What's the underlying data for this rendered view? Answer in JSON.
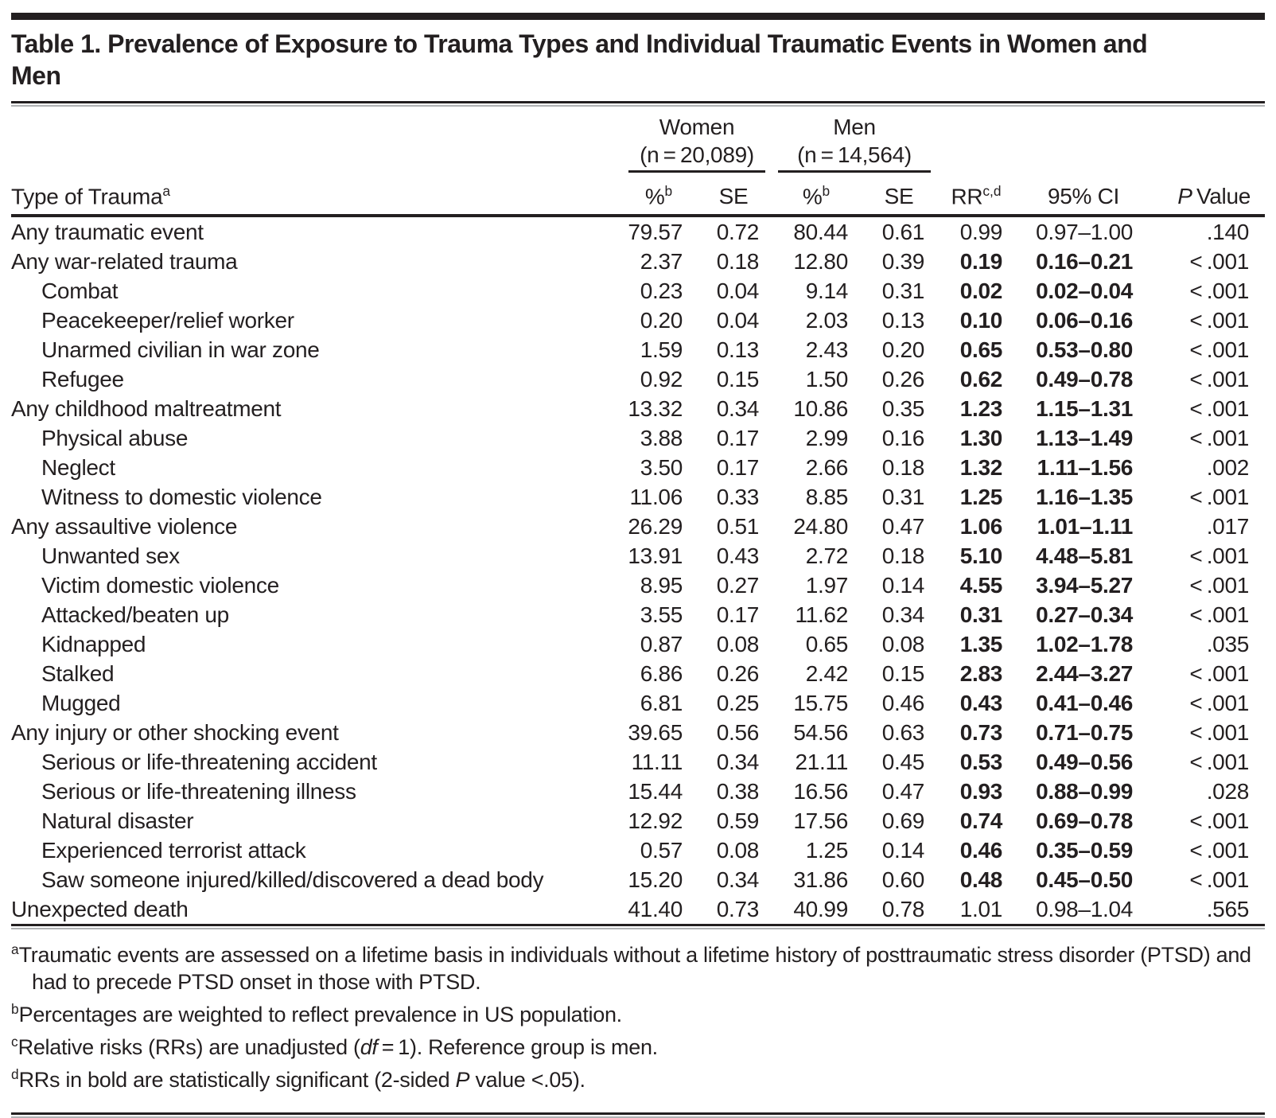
{
  "title_lines": [
    "Table 1. Prevalence of Exposure to Trauma Types and Individual Traumatic Events in Women and",
    "Men"
  ],
  "header": {
    "col_type": "Type of Trauma",
    "col_type_sup": "a",
    "groups": {
      "women": {
        "label": "Women",
        "n": "(n = 20,089)"
      },
      "men": {
        "label": "Men",
        "n": "(n = 14,564)"
      }
    },
    "pct_label": "%",
    "pct_sup": "b",
    "se_label": "SE",
    "rr_label": "RR",
    "rr_sup": "c,d",
    "ci_label": "95% CI",
    "p_label_italic": "P",
    "p_label_rest": " Value"
  },
  "rows": [
    {
      "label": "Any traumatic event",
      "indent": 0,
      "w_pct": "79.57",
      "w_se": "0.72",
      "m_pct": "80.44",
      "m_se": "0.61",
      "rr": "0.99",
      "ci": "0.97–1.00",
      "p": ".140",
      "sig": false
    },
    {
      "label": "Any war-related trauma",
      "indent": 0,
      "w_pct": "2.37",
      "w_se": "0.18",
      "m_pct": "12.80",
      "m_se": "0.39",
      "rr": "0.19",
      "ci": "0.16–0.21",
      "p": "< .001",
      "sig": true
    },
    {
      "label": "Combat",
      "indent": 1,
      "w_pct": "0.23",
      "w_se": "0.04",
      "m_pct": "9.14",
      "m_se": "0.31",
      "rr": "0.02",
      "ci": "0.02–0.04",
      "p": "< .001",
      "sig": true
    },
    {
      "label": "Peacekeeper/relief worker",
      "indent": 1,
      "w_pct": "0.20",
      "w_se": "0.04",
      "m_pct": "2.03",
      "m_se": "0.13",
      "rr": "0.10",
      "ci": "0.06–0.16",
      "p": "< .001",
      "sig": true
    },
    {
      "label": "Unarmed civilian in war zone",
      "indent": 1,
      "w_pct": "1.59",
      "w_se": "0.13",
      "m_pct": "2.43",
      "m_se": "0.20",
      "rr": "0.65",
      "ci": "0.53–0.80",
      "p": "< .001",
      "sig": true
    },
    {
      "label": "Refugee",
      "indent": 1,
      "w_pct": "0.92",
      "w_se": "0.15",
      "m_pct": "1.50",
      "m_se": "0.26",
      "rr": "0.62",
      "ci": "0.49–0.78",
      "p": "< .001",
      "sig": true
    },
    {
      "label": "Any childhood maltreatment",
      "indent": 0,
      "w_pct": "13.32",
      "w_se": "0.34",
      "m_pct": "10.86",
      "m_se": "0.35",
      "rr": "1.23",
      "ci": "1.15–1.31",
      "p": "< .001",
      "sig": true
    },
    {
      "label": "Physical abuse",
      "indent": 1,
      "w_pct": "3.88",
      "w_se": "0.17",
      "m_pct": "2.99",
      "m_se": "0.16",
      "rr": "1.30",
      "ci": "1.13–1.49",
      "p": "< .001",
      "sig": true
    },
    {
      "label": "Neglect",
      "indent": 1,
      "w_pct": "3.50",
      "w_se": "0.17",
      "m_pct": "2.66",
      "m_se": "0.18",
      "rr": "1.32",
      "ci": "1.11–1.56",
      "p": ".002",
      "sig": true
    },
    {
      "label": "Witness to domestic violence",
      "indent": 1,
      "w_pct": "11.06",
      "w_se": "0.33",
      "m_pct": "8.85",
      "m_se": "0.31",
      "rr": "1.25",
      "ci": "1.16–1.35",
      "p": "< .001",
      "sig": true
    },
    {
      "label": "Any assaultive violence",
      "indent": 0,
      "w_pct": "26.29",
      "w_se": "0.51",
      "m_pct": "24.80",
      "m_se": "0.47",
      "rr": "1.06",
      "ci": "1.01–1.11",
      "p": ".017",
      "sig": true
    },
    {
      "label": "Unwanted sex",
      "indent": 1,
      "w_pct": "13.91",
      "w_se": "0.43",
      "m_pct": "2.72",
      "m_se": "0.18",
      "rr": "5.10",
      "ci": "4.48–5.81",
      "p": "< .001",
      "sig": true
    },
    {
      "label": "Victim domestic violence",
      "indent": 1,
      "w_pct": "8.95",
      "w_se": "0.27",
      "m_pct": "1.97",
      "m_se": "0.14",
      "rr": "4.55",
      "ci": "3.94–5.27",
      "p": "< .001",
      "sig": true
    },
    {
      "label": "Attacked/beaten up",
      "indent": 1,
      "w_pct": "3.55",
      "w_se": "0.17",
      "m_pct": "11.62",
      "m_se": "0.34",
      "rr": "0.31",
      "ci": "0.27–0.34",
      "p": "< .001",
      "sig": true
    },
    {
      "label": "Kidnapped",
      "indent": 1,
      "w_pct": "0.87",
      "w_se": "0.08",
      "m_pct": "0.65",
      "m_se": "0.08",
      "rr": "1.35",
      "ci": "1.02–1.78",
      "p": ".035",
      "sig": true
    },
    {
      "label": "Stalked",
      "indent": 1,
      "w_pct": "6.86",
      "w_se": "0.26",
      "m_pct": "2.42",
      "m_se": "0.15",
      "rr": "2.83",
      "ci": "2.44–3.27",
      "p": "< .001",
      "sig": true
    },
    {
      "label": "Mugged",
      "indent": 1,
      "w_pct": "6.81",
      "w_se": "0.25",
      "m_pct": "15.75",
      "m_se": "0.46",
      "rr": "0.43",
      "ci": "0.41–0.46",
      "p": "< .001",
      "sig": true
    },
    {
      "label": "Any injury or other shocking event",
      "indent": 0,
      "w_pct": "39.65",
      "w_se": "0.56",
      "m_pct": "54.56",
      "m_se": "0.63",
      "rr": "0.73",
      "ci": "0.71–0.75",
      "p": "< .001",
      "sig": true
    },
    {
      "label": "Serious or life-threatening accident",
      "indent": 1,
      "w_pct": "11.11",
      "w_se": "0.34",
      "m_pct": "21.11",
      "m_se": "0.45",
      "rr": "0.53",
      "ci": "0.49–0.56",
      "p": "< .001",
      "sig": true
    },
    {
      "label": "Serious or life-threatening illness",
      "indent": 1,
      "w_pct": "15.44",
      "w_se": "0.38",
      "m_pct": "16.56",
      "m_se": "0.47",
      "rr": "0.93",
      "ci": "0.88–0.99",
      "p": ".028",
      "sig": true
    },
    {
      "label": "Natural disaster",
      "indent": 1,
      "w_pct": "12.92",
      "w_se": "0.59",
      "m_pct": "17.56",
      "m_se": "0.69",
      "rr": "0.74",
      "ci": "0.69–0.78",
      "p": "< .001",
      "sig": true
    },
    {
      "label": "Experienced terrorist attack",
      "indent": 1,
      "w_pct": "0.57",
      "w_se": "0.08",
      "m_pct": "1.25",
      "m_se": "0.14",
      "rr": "0.46",
      "ci": "0.35–0.59",
      "p": "< .001",
      "sig": true
    },
    {
      "label": "Saw someone injured/killed/discovered a dead body",
      "indent": 1,
      "w_pct": "15.20",
      "w_se": "0.34",
      "m_pct": "31.86",
      "m_se": "0.60",
      "rr": "0.48",
      "ci": "0.45–0.50",
      "p": "< .001",
      "sig": true
    },
    {
      "label": "Unexpected death",
      "indent": 0,
      "w_pct": "41.40",
      "w_se": "0.73",
      "m_pct": "40.99",
      "m_se": "0.78",
      "rr": "1.01",
      "ci": "0.98–1.04",
      "p": ".565",
      "sig": false
    }
  ],
  "footnotes": [
    {
      "sup": "a",
      "segments": [
        {
          "text": "Traumatic events are assessed on a lifetime basis in individuals without a lifetime history of posttraumatic stress disorder (PTSD) and had to precede PTSD onset in those with PTSD.",
          "italic": false
        }
      ]
    },
    {
      "sup": "b",
      "segments": [
        {
          "text": "Percentages are weighted to reflect prevalence in US population.",
          "italic": false
        }
      ]
    },
    {
      "sup": "c",
      "segments": [
        {
          "text": "Relative risks (RRs) are unadjusted (",
          "italic": false
        },
        {
          "text": "df",
          "italic": true
        },
        {
          "text": " = 1). Reference group is men.",
          "italic": false
        }
      ]
    },
    {
      "sup": "d",
      "segments": [
        {
          "text": "RRs in bold are statistically significant (2-sided ",
          "italic": false
        },
        {
          "text": "P",
          "italic": true
        },
        {
          "text": " value <.05).",
          "italic": false
        }
      ]
    }
  ],
  "colors": {
    "text": "#231f20",
    "rule_gray": "#b0b2b4"
  }
}
